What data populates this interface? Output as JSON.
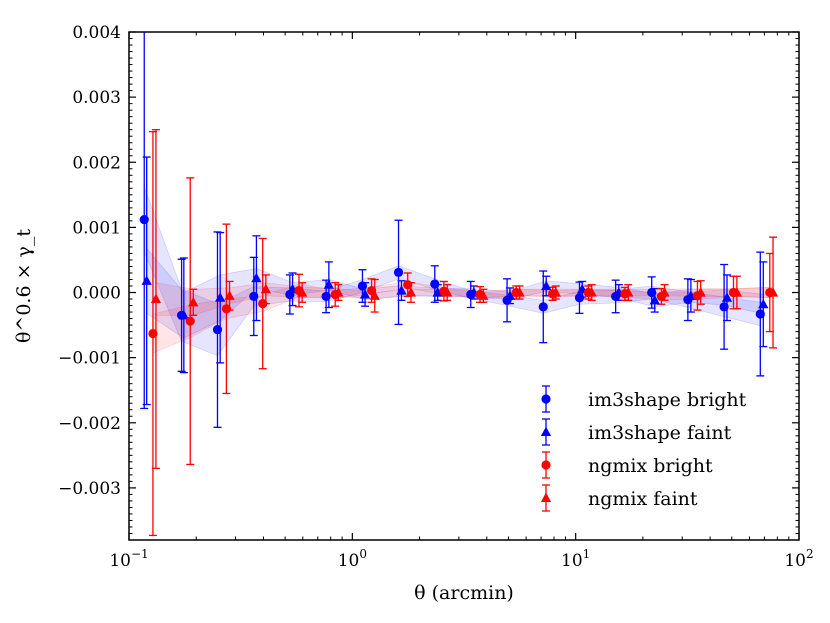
{
  "chart_data": {
    "type": "scatter",
    "title": "",
    "xlabel": "θ (arcmin)",
    "ylabel": "θ^0.6 × γ_t",
    "xscale": "log",
    "xlim": [
      0.1,
      100
    ],
    "ylim": [
      -0.0038,
      0.004
    ],
    "grid": false,
    "legend_position": "lower-right",
    "x_ticks": [
      {
        "value": 0.1,
        "base": "10",
        "exp": "−1"
      },
      {
        "value": 1,
        "base": "10",
        "exp": "0"
      },
      {
        "value": 10,
        "base": "10",
        "exp": "1"
      },
      {
        "value": 100,
        "base": "10",
        "exp": "2"
      }
    ],
    "y_ticks": [
      {
        "value": -0.003,
        "label": "−0.003"
      },
      {
        "value": -0.002,
        "label": "−0.002"
      },
      {
        "value": -0.001,
        "label": "−0.001"
      },
      {
        "value": 0.0,
        "label": "0.000"
      },
      {
        "value": 0.001,
        "label": "0.001"
      },
      {
        "value": 0.002,
        "label": "0.002"
      },
      {
        "value": 0.003,
        "label": "0.003"
      },
      {
        "value": 0.004,
        "label": "0.004"
      }
    ],
    "series": [
      {
        "name": "im3shape bright",
        "marker": "circle",
        "color": "#0000ff",
        "x": [
          0.117,
          0.172,
          0.249,
          0.362,
          0.525,
          0.763,
          1.11,
          1.61,
          2.34,
          3.39,
          4.93,
          7.16,
          10.4,
          15.1,
          21.9,
          31.8,
          46.2,
          67.1
        ],
        "y": [
          0.00112,
          -0.00035,
          -0.00057,
          -6e-05,
          -3e-05,
          -6e-05,
          0.0001,
          0.00031,
          0.00013,
          -3e-05,
          -0.00012,
          -0.00022,
          -8e-05,
          -6e-05,
          0.0,
          -0.00011,
          -0.00022,
          -0.00033
        ],
        "err": [
          0.0029,
          0.00086,
          0.0015,
          0.0006,
          0.0003,
          0.00025,
          0.00025,
          0.0008,
          0.00028,
          0.0002,
          0.00033,
          0.00055,
          0.00024,
          0.00025,
          0.00024,
          0.00032,
          0.00065,
          0.00095
        ],
        "band": [
          0.0005,
          0.0004,
          0.0004,
          0.00015,
          0.0001,
          8e-05,
          0.0001,
          0.0001,
          8e-05,
          6e-05,
          8e-05,
          0.0001,
          0.0001,
          0.0001,
          0.0001,
          0.00012,
          0.00015,
          0.00018
        ]
      },
      {
        "name": "im3shape faint",
        "marker": "triangle",
        "color": "#0000ff",
        "x": [
          0.12,
          0.176,
          0.256,
          0.372,
          0.54,
          0.785,
          1.14,
          1.66,
          2.41,
          3.5,
          5.08,
          7.38,
          10.7,
          15.6,
          22.6,
          32.8,
          47.6,
          69.2
        ],
        "y": [
          0.00018,
          -0.00035,
          -8e-05,
          0.00022,
          5e-05,
          0.00012,
          -3e-05,
          3e-05,
          0.0,
          0.0,
          -5e-05,
          0.0001,
          5e-05,
          0.0,
          -0.00012,
          -5e-05,
          -8e-05,
          -0.00018
        ],
        "err": [
          0.0019,
          0.00088,
          0.001,
          0.00065,
          0.00025,
          0.00035,
          0.00018,
          0.00015,
          0.00012,
          0.0001,
          0.00012,
          0.00015,
          0.00012,
          0.00012,
          0.00018,
          0.00025,
          0.00035,
          0.00065
        ],
        "band": [
          0.0005,
          0.00035,
          0.00035,
          0.00015,
          0.0001,
          8e-05,
          8e-05,
          8e-05,
          6e-05,
          6e-05,
          6e-05,
          8e-05,
          8e-05,
          8e-05,
          0.0001,
          0.0001,
          0.00012,
          0.00015
        ]
      },
      {
        "name": "ngmix bright",
        "marker": "circle",
        "color": "#ff0000",
        "x": [
          0.128,
          0.188,
          0.273,
          0.397,
          0.577,
          0.838,
          1.22,
          1.77,
          2.57,
          3.73,
          5.42,
          7.88,
          11.4,
          16.6,
          24.2,
          35.1,
          50.9,
          74.0
        ],
        "y": [
          -0.00063,
          -0.00044,
          -0.00025,
          -0.00017,
          3e-05,
          -3e-05,
          3e-05,
          0.00012,
          2e-05,
          -3e-05,
          0.0,
          -2e-05,
          0.0,
          -2e-05,
          -6e-05,
          -5e-05,
          0.0,
          0.0
        ],
        "err": [
          0.0031,
          0.0022,
          0.0013,
          0.001,
          0.00025,
          0.00018,
          0.00018,
          0.00018,
          0.00015,
          0.00012,
          0.0001,
          0.0001,
          0.0001,
          0.0001,
          0.00012,
          0.00022,
          0.00025,
          0.0006
        ],
        "band": [
          0.0003,
          0.00025,
          0.00015,
          0.00012,
          0.0001,
          6e-05,
          5e-05,
          5e-05,
          5e-05,
          5e-05,
          5e-05,
          5e-05,
          5e-05,
          5e-05,
          5e-05,
          6e-05,
          6e-05,
          8e-05
        ]
      },
      {
        "name": "ngmix faint",
        "marker": "triangle",
        "color": "#ff0000",
        "x": [
          0.132,
          0.194,
          0.282,
          0.41,
          0.596,
          0.866,
          1.26,
          1.83,
          2.66,
          3.86,
          5.61,
          8.15,
          11.8,
          17.2,
          25.0,
          36.3,
          52.7,
          76.5
        ],
        "y": [
          -0.0001,
          -0.00015,
          -5e-05,
          5e-05,
          0.0,
          0.0,
          -5e-05,
          0.0,
          0.0,
          -5e-05,
          0.0,
          0.0,
          0.0,
          0.0,
          0.0,
          0.0,
          0.0,
          0.0
        ],
        "err": [
          0.0026,
          0.0002,
          0.00022,
          0.00022,
          0.00015,
          0.00012,
          0.00025,
          0.00015,
          0.00012,
          0.0001,
          0.0001,
          0.0001,
          0.00012,
          0.00012,
          0.00012,
          0.00018,
          0.00025,
          0.00085
        ],
        "band": [
          0.00025,
          0.0002,
          0.00012,
          0.0001,
          8e-05,
          6e-05,
          5e-05,
          5e-05,
          5e-05,
          5e-05,
          5e-05,
          5e-05,
          5e-05,
          5e-05,
          5e-05,
          6e-05,
          6e-05,
          8e-05
        ]
      }
    ]
  }
}
